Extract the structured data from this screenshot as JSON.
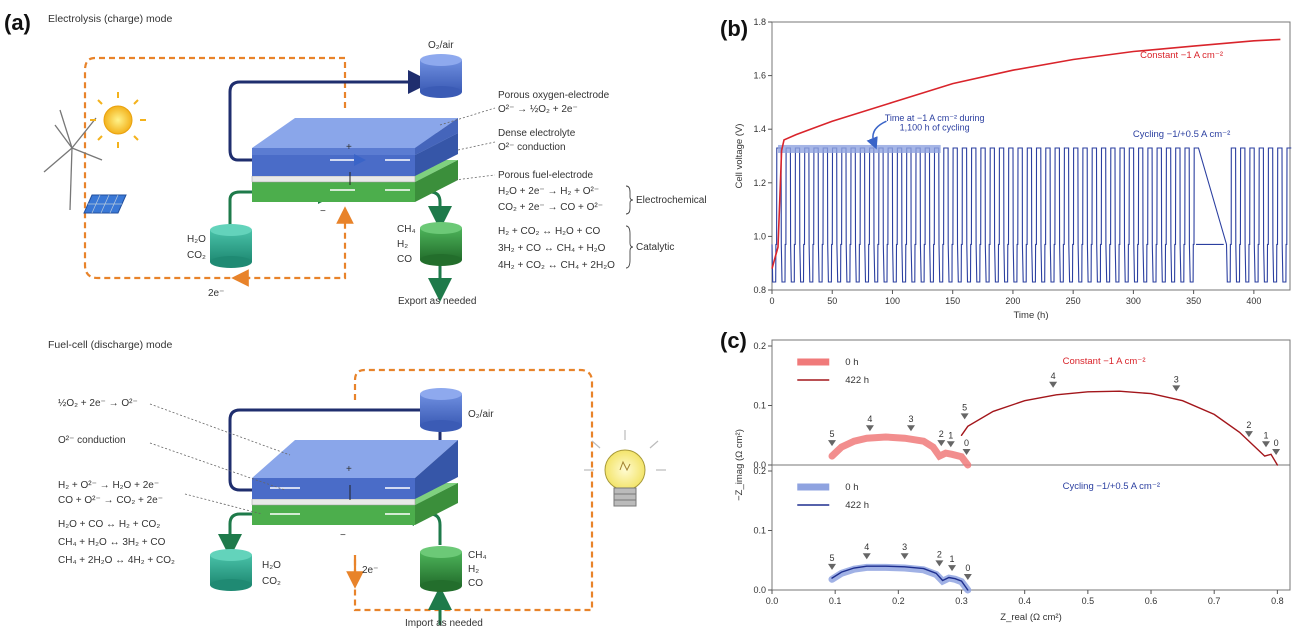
{
  "panel_a": {
    "letter": "(a)",
    "top_mode": "Electrolysis (charge) mode",
    "bottom_mode": "Fuel-cell (discharge) mode",
    "o2_air": "O₂/air",
    "top_labels": {
      "porous_oxygen_electrode": "Porous oxygen-electrode",
      "oxygen_reaction": "O²⁻ → ½O₂ + 2e⁻",
      "dense_electrolyte": "Dense electrolyte",
      "o2_conduction": "O²⁻ conduction",
      "porous_fuel_electrode": "Porous fuel-electrode",
      "ec_reaction_1": "H₂O + 2e⁻ → H₂ + O²⁻",
      "ec_reaction_2": "CO₂ + 2e⁻ → CO + O²⁻",
      "electrochemical": "Electrochemical",
      "cat_reaction_1": "H₂ + CO₂ ↔ H₂O + CO",
      "cat_reaction_2": "3H₂ + CO ↔ CH₄ + H₂O",
      "cat_reaction_3": "4H₂ + CO₂ ↔ CH₄ + 2H₂O",
      "catalytic": "Catalytic",
      "export": "Export as needed",
      "electrons": "2e⁻",
      "tank_in_1": "H₂O",
      "tank_in_2": "CO₂",
      "tank_out_1": "CH₄",
      "tank_out_2": "H₂",
      "tank_out_3": "CO",
      "plus": "+",
      "minus": "−"
    },
    "bottom_labels": {
      "oxygen_reaction": "½O₂ + 2e⁻ → O²⁻",
      "o2_conduction": "O²⁻ conduction",
      "reaction_1": "H₂ + O²⁻ → H₂O + 2e⁻",
      "reaction_2": "CO + O²⁻ → CO₂ + 2e⁻",
      "reaction_3": "H₂O + CO ↔ H₂ + CO₂",
      "reaction_4": "CH₄ + H₂O ↔ 3H₂ + CO",
      "reaction_5": "CH₄ + 2H₂O ↔ 4H₂ + CO₂",
      "import": "Import as needed",
      "electrons": "2e⁻",
      "tank_out_1": "H₂O",
      "tank_out_2": "CO₂",
      "tank_in_1": "CH₄",
      "tank_in_2": "H₂",
      "tank_in_3": "CO",
      "plus": "+",
      "minus": "−"
    }
  },
  "chart_data": [
    {
      "panel": "(b)",
      "type": "line",
      "xlabel": "Time (h)",
      "ylabel": "Cell voltage (V)",
      "xlim": [
        0,
        430
      ],
      "ylim": [
        0.8,
        1.8
      ],
      "xticks": [
        0,
        50,
        100,
        150,
        200,
        250,
        300,
        350,
        400
      ],
      "yticks": [
        0.8,
        1.0,
        1.2,
        1.4,
        1.6,
        1.8
      ],
      "tick_labels_x": [
        "0",
        "50",
        "100",
        "150",
        "200",
        "250",
        "300",
        "350",
        "400"
      ],
      "tick_labels_y": [
        "0.8",
        "1.0",
        "1.2",
        "1.4",
        "1.6",
        "1.8"
      ],
      "annotation": "Time at −1 A cm⁻² during 1,100 h of cycling",
      "annotation_line1": "Time at −1 A cm⁻² during",
      "annotation_line2": "1,100 h of cycling",
      "series": [
        {
          "name": "Constant −1 A cm⁻²",
          "color": "#d9242b",
          "x": [
            0,
            5,
            8,
            10,
            20,
            50,
            100,
            150,
            200,
            250,
            300,
            350,
            400,
            422
          ],
          "y": [
            0.88,
            0.96,
            1.32,
            1.36,
            1.38,
            1.43,
            1.5,
            1.57,
            1.62,
            1.66,
            1.69,
            1.71,
            1.73,
            1.735
          ]
        },
        {
          "name": "Cycling −1/+0.5 A cm⁻²",
          "color": "#2b3fa0",
          "cycle_high": 1.33,
          "cycle_low_a": 0.97,
          "cycle_low_b": 0.83,
          "period_h": 7.7,
          "x_start": 0,
          "x_end": 425,
          "gap_start": 352,
          "gap_end": 375,
          "gap_value": 0.97
        }
      ],
      "highlight_band": {
        "x": [
          5,
          140
        ],
        "y": [
          1.31,
          1.33
        ],
        "color": "#8fa3e0"
      }
    },
    {
      "panel": "(c)",
      "type": "line",
      "xlabel": "Z_real (Ω cm²)",
      "ylabel": "−Z_imag (Ω cm²)",
      "xlim": [
        0,
        0.82
      ],
      "ylim": [
        0,
        0.2
      ],
      "xticks": [
        0,
        0.1,
        0.2,
        0.3,
        0.4,
        0.5,
        0.6,
        0.7,
        0.8
      ],
      "yticks": [
        0,
        0.1,
        0.2
      ],
      "tick_labels_x": [
        "0.0",
        "0.1",
        "0.2",
        "0.3",
        "0.4",
        "0.5",
        "0.6",
        "0.7",
        "0.8"
      ],
      "tick_labels_y": [
        "0.0",
        "0.1",
        "0.2"
      ],
      "marker_labels": [
        "5",
        "4",
        "3",
        "2",
        "1",
        "0"
      ],
      "subplots": [
        {
          "title": "Constant −1 A cm⁻²",
          "title_color": "#d9242b",
          "series": [
            {
              "name": "0 h",
              "color": "#f07a7a",
              "x": [
                0.095,
                0.11,
                0.13,
                0.15,
                0.18,
                0.21,
                0.24,
                0.255,
                0.265,
                0.275,
                0.285,
                0.3,
                0.31
              ],
              "y": [
                0.015,
                0.03,
                0.04,
                0.045,
                0.047,
                0.045,
                0.04,
                0.03,
                0.015,
                0.02,
                0.018,
                0.014,
                0.0
              ]
            },
            {
              "name": "422 h",
              "color": "#a3161b",
              "x": [
                0.3,
                0.31,
                0.35,
                0.4,
                0.45,
                0.5,
                0.55,
                0.6,
                0.65,
                0.7,
                0.74,
                0.77,
                0.78,
                0.79,
                0.8
              ],
              "y": [
                0.05,
                0.065,
                0.09,
                0.108,
                0.118,
                0.123,
                0.124,
                0.12,
                0.108,
                0.085,
                0.055,
                0.025,
                0.015,
                0.018,
                0.0
              ]
            }
          ],
          "markers": [
            {
              "label": "5",
              "x": 0.095,
              "y": 0.02
            },
            {
              "label": "4",
              "x": 0.155,
              "y": 0.045
            },
            {
              "label": "3",
              "x": 0.22,
              "y": 0.045
            },
            {
              "label": "2",
              "x": 0.268,
              "y": 0.02
            },
            {
              "label": "1",
              "x": 0.283,
              "y": 0.018
            },
            {
              "label": "0",
              "x": 0.308,
              "y": 0.005
            },
            {
              "label": "5",
              "x": 0.305,
              "y": 0.065
            },
            {
              "label": "4",
              "x": 0.445,
              "y": 0.118
            },
            {
              "label": "3",
              "x": 0.64,
              "y": 0.112
            },
            {
              "label": "2",
              "x": 0.755,
              "y": 0.035
            },
            {
              "label": "1",
              "x": 0.782,
              "y": 0.018
            },
            {
              "label": "0",
              "x": 0.798,
              "y": 0.005
            }
          ]
        },
        {
          "title": "Cycling −1/+0.5 A cm⁻²",
          "title_color": "#2b3fa0",
          "series": [
            {
              "name": "0 h",
              "color": "#8fa3e0",
              "x": [
                0.095,
                0.11,
                0.13,
                0.15,
                0.18,
                0.21,
                0.24,
                0.26,
                0.27,
                0.28,
                0.29,
                0.3,
                0.31
              ],
              "y": [
                0.018,
                0.028,
                0.035,
                0.038,
                0.038,
                0.037,
                0.034,
                0.026,
                0.015,
                0.02,
                0.018,
                0.014,
                0.0
              ]
            },
            {
              "name": "422 h",
              "color": "#1e2f8f",
              "x": [
                0.095,
                0.11,
                0.13,
                0.15,
                0.18,
                0.21,
                0.24,
                0.26,
                0.27,
                0.28,
                0.29,
                0.3,
                0.31
              ],
              "y": [
                0.02,
                0.03,
                0.037,
                0.04,
                0.04,
                0.039,
                0.036,
                0.028,
                0.016,
                0.021,
                0.019,
                0.015,
                0.0
              ]
            }
          ],
          "markers": [
            {
              "label": "5",
              "x": 0.095,
              "y": 0.022
            },
            {
              "label": "4",
              "x": 0.15,
              "y": 0.04
            },
            {
              "label": "3",
              "x": 0.21,
              "y": 0.04
            },
            {
              "label": "2",
              "x": 0.265,
              "y": 0.028
            },
            {
              "label": "1",
              "x": 0.285,
              "y": 0.02
            },
            {
              "label": "0",
              "x": 0.31,
              "y": 0.005
            }
          ]
        }
      ]
    }
  ],
  "colors": {
    "blue_top": "#5f7fd6",
    "blue_side": "#3d5cb0",
    "green_top": "#7fd17f",
    "green_side": "#4cae4c",
    "orange_wire": "#e8832a",
    "navy_pipe": "#1f2e6e",
    "green_pipe": "#1e7a4a",
    "teal_tank": "#2aa58f",
    "dark_green_tank": "#2e8b3a"
  }
}
